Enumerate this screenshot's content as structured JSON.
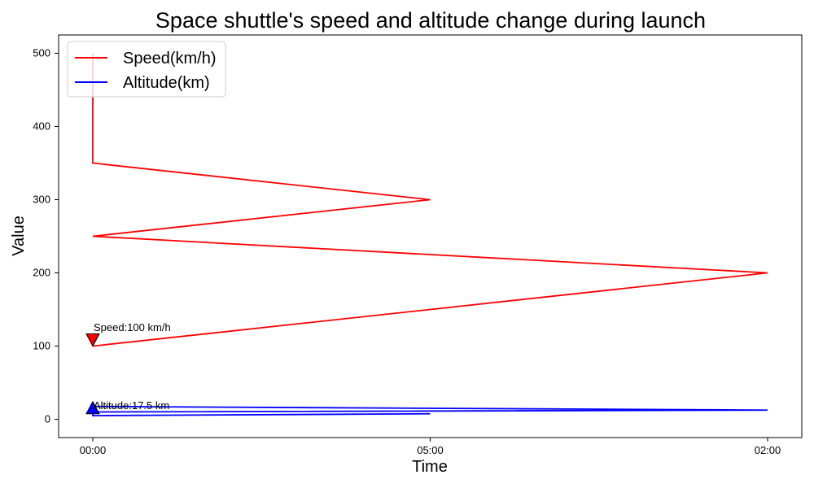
{
  "chart_data": {
    "type": "line",
    "title": "Space shuttle's speed and altitude change during launch",
    "xlabel": "Time",
    "ylabel": "Value",
    "categories": [
      "00:00",
      "05:00",
      "02:00"
    ],
    "x_index": [
      0,
      1,
      2
    ],
    "ylim": [
      -25,
      525
    ],
    "yticks": [
      0,
      100,
      200,
      300,
      400,
      500
    ],
    "grid": false,
    "legend_position": "top-left",
    "series": [
      {
        "name": "Speed(km/h)",
        "color": "#ff0000",
        "points": [
          {
            "x": "00:00",
            "y": 100
          },
          {
            "x": "02:00",
            "y": 200
          },
          {
            "x": "00:00",
            "y": 250
          },
          {
            "x": "05:00",
            "y": 300
          },
          {
            "x": "00:00",
            "y": 350
          },
          {
            "x": "00:00",
            "y": 500
          }
        ]
      },
      {
        "name": "Altitude(km)",
        "color": "#0000ff",
        "points": [
          {
            "x": "05:00",
            "y": 7.5
          },
          {
            "x": "00:00",
            "y": 5
          },
          {
            "x": "00:00",
            "y": 10
          },
          {
            "x": "02:00",
            "y": 12.5
          },
          {
            "x": "00:00",
            "y": 17.5
          }
        ]
      }
    ],
    "annotations": [
      {
        "text": "Speed:100 km/h",
        "x": "00:00",
        "y": 100,
        "marker": "triangle-down",
        "marker_color": "#ff0000",
        "target_series": "Speed(km/h)"
      },
      {
        "text": "Altitude:17.5 km",
        "x": "00:00",
        "y": 7.5,
        "marker": "triangle-up",
        "marker_color": "#0000ff",
        "target_series": "Altitude(km)"
      }
    ]
  }
}
